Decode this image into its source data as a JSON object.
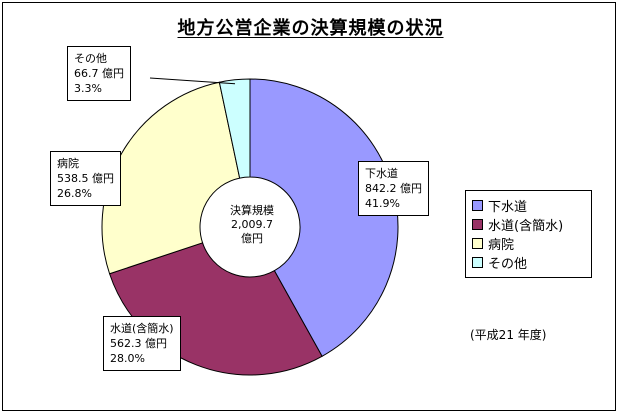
{
  "chart_data": {
    "type": "donut",
    "title": "地方公営企業の決算規模の状況",
    "center_label": [
      "決算規模",
      "2,009.7",
      "億円"
    ],
    "total": 2009.7,
    "unit": "億円",
    "slices": [
      {
        "name": "下水道",
        "value": 842.2,
        "value_label": "842.2 億円",
        "percent": 41.9,
        "percent_label": "41.9%",
        "color": "#9999ff"
      },
      {
        "name": "水道(含簡水)",
        "value": 562.3,
        "value_label": "562.3 億円",
        "percent": 28.0,
        "percent_label": "28.0%",
        "color": "#993366"
      },
      {
        "name": "病院",
        "value": 538.5,
        "value_label": "538.5 億円",
        "percent": 26.8,
        "percent_label": "26.8%",
        "color": "#ffffcc"
      },
      {
        "name": "その他",
        "value": 66.7,
        "value_label": "66.7 億円",
        "percent": 3.3,
        "percent_label": "3.3%",
        "color": "#ccffff"
      }
    ],
    "legend": [
      "下水道",
      "水道(含簡水)",
      "病院",
      "その他"
    ],
    "legend_position": "right",
    "note": "(平成21 年度)"
  }
}
